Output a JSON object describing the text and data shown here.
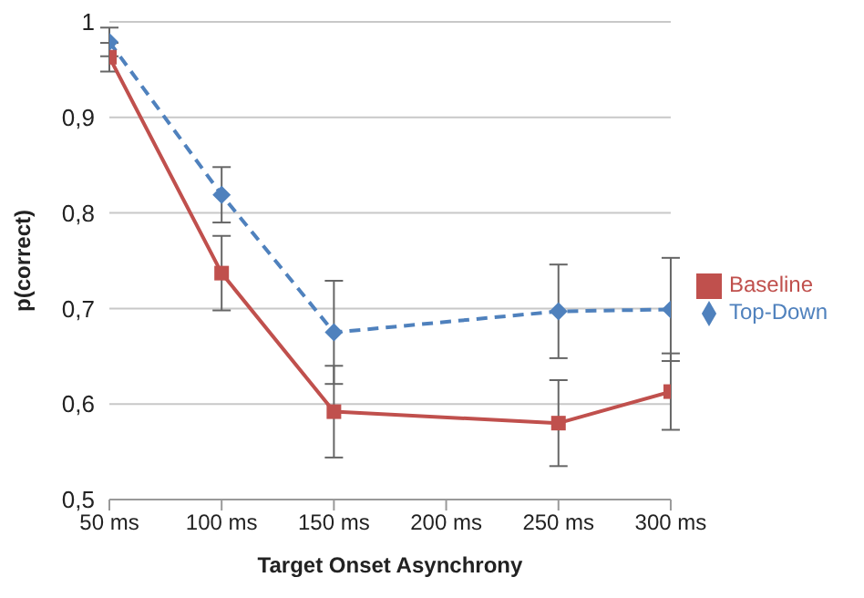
{
  "chart_data": {
    "type": "line",
    "xlabel": "Target Onset  Asynchrony",
    "ylabel": "p(correct)",
    "categories": [
      "50 ms",
      "100 ms",
      "150 ms",
      "200 ms",
      "250 ms",
      "300 ms"
    ],
    "series": [
      {
        "name": "Top-Down",
        "color": "#4f81bd",
        "marker": "diamond",
        "line_style": "dashed",
        "values": [
          0.979,
          0.819,
          0.675,
          null,
          0.697,
          0.699
        ],
        "errors": [
          0.015,
          0.029,
          0.054,
          null,
          0.049,
          0.054
        ]
      },
      {
        "name": "Baseline",
        "color": "#c0504d",
        "marker": "square",
        "line_style": "solid",
        "values": [
          0.963,
          0.737,
          0.592,
          null,
          0.58,
          0.613
        ],
        "errors": [
          0.015,
          0.039,
          0.048,
          null,
          0.045,
          0.04
        ]
      }
    ],
    "ylim": [
      0.5,
      1
    ],
    "yticks": [
      {
        "value": 0.5,
        "label": "0,5"
      },
      {
        "value": 0.6,
        "label": "0,6"
      },
      {
        "value": 0.7,
        "label": "0,7"
      },
      {
        "value": 0.8,
        "label": "0,8"
      },
      {
        "value": 0.9,
        "label": "0,9"
      },
      {
        "value": 1,
        "label": "1"
      }
    ],
    "grid": "y",
    "legend": "right"
  }
}
